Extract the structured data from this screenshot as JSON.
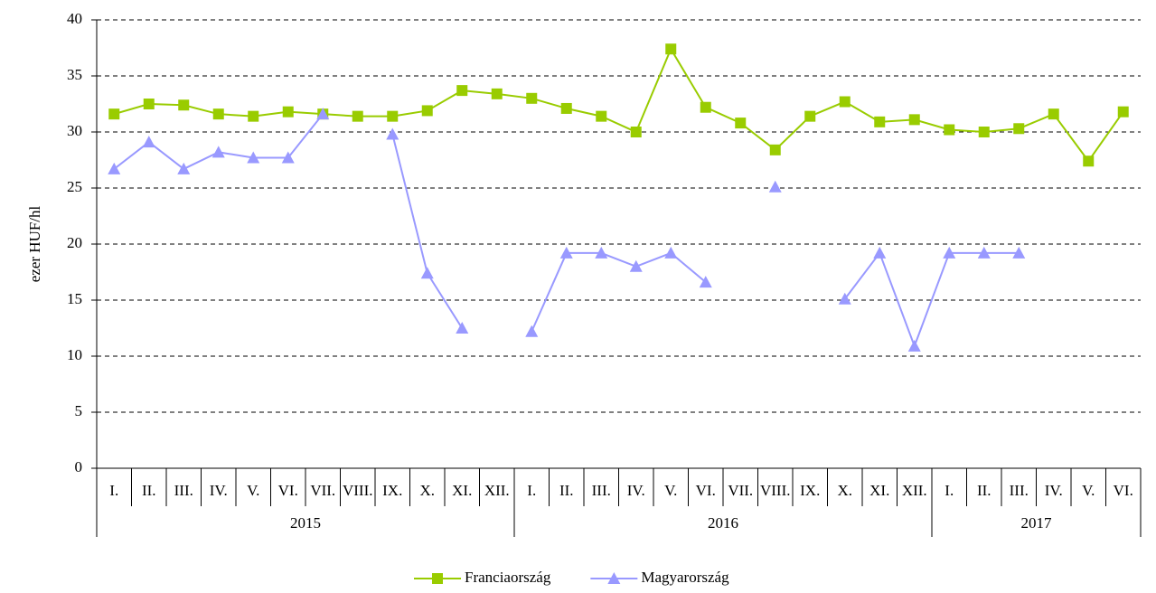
{
  "chart_data": {
    "type": "line",
    "y_label": "ezer HUF/hl",
    "categories": [
      "I.",
      "II.",
      "III.",
      "IV.",
      "V.",
      "VI.",
      "VII.",
      "VIII.",
      "IX.",
      "X.",
      "XI.",
      "XII.",
      "I.",
      "II.",
      "III.",
      "IV.",
      "V.",
      "VI.",
      "VII.",
      "VIII.",
      "IX.",
      "X.",
      "XI.",
      "XII.",
      "I.",
      "II.",
      "III.",
      "IV.",
      "V.",
      "VI."
    ],
    "years": [
      "2015",
      "2016",
      "2017"
    ],
    "series": [
      {
        "name": "Franciaország",
        "color": "#99cc00",
        "marker": "square",
        "values": [
          31.6,
          32.5,
          32.4,
          31.6,
          31.4,
          31.8,
          31.6,
          31.4,
          31.4,
          31.9,
          33.7,
          33.4,
          33.0,
          32.1,
          31.4,
          30.0,
          37.4,
          32.2,
          30.8,
          28.4,
          31.4,
          32.7,
          30.9,
          31.1,
          30.2,
          30.0,
          30.3,
          31.6,
          27.4,
          31.8
        ]
      },
      {
        "name": "Magyarország",
        "color": "#9999ff",
        "marker": "triangle",
        "values": [
          26.7,
          29.1,
          26.7,
          28.2,
          27.7,
          27.7,
          31.6,
          null,
          29.8,
          17.4,
          12.5,
          null,
          12.2,
          19.2,
          19.2,
          18.0,
          19.2,
          16.6,
          null,
          25.1,
          null,
          15.1,
          19.2,
          10.9,
          19.2,
          19.2,
          19.2,
          null,
          null,
          null
        ]
      }
    ],
    "ylim": [
      0,
      40
    ],
    "yticks": [
      0,
      5,
      10,
      15,
      20,
      25,
      30,
      35,
      40
    ],
    "grid": true
  }
}
